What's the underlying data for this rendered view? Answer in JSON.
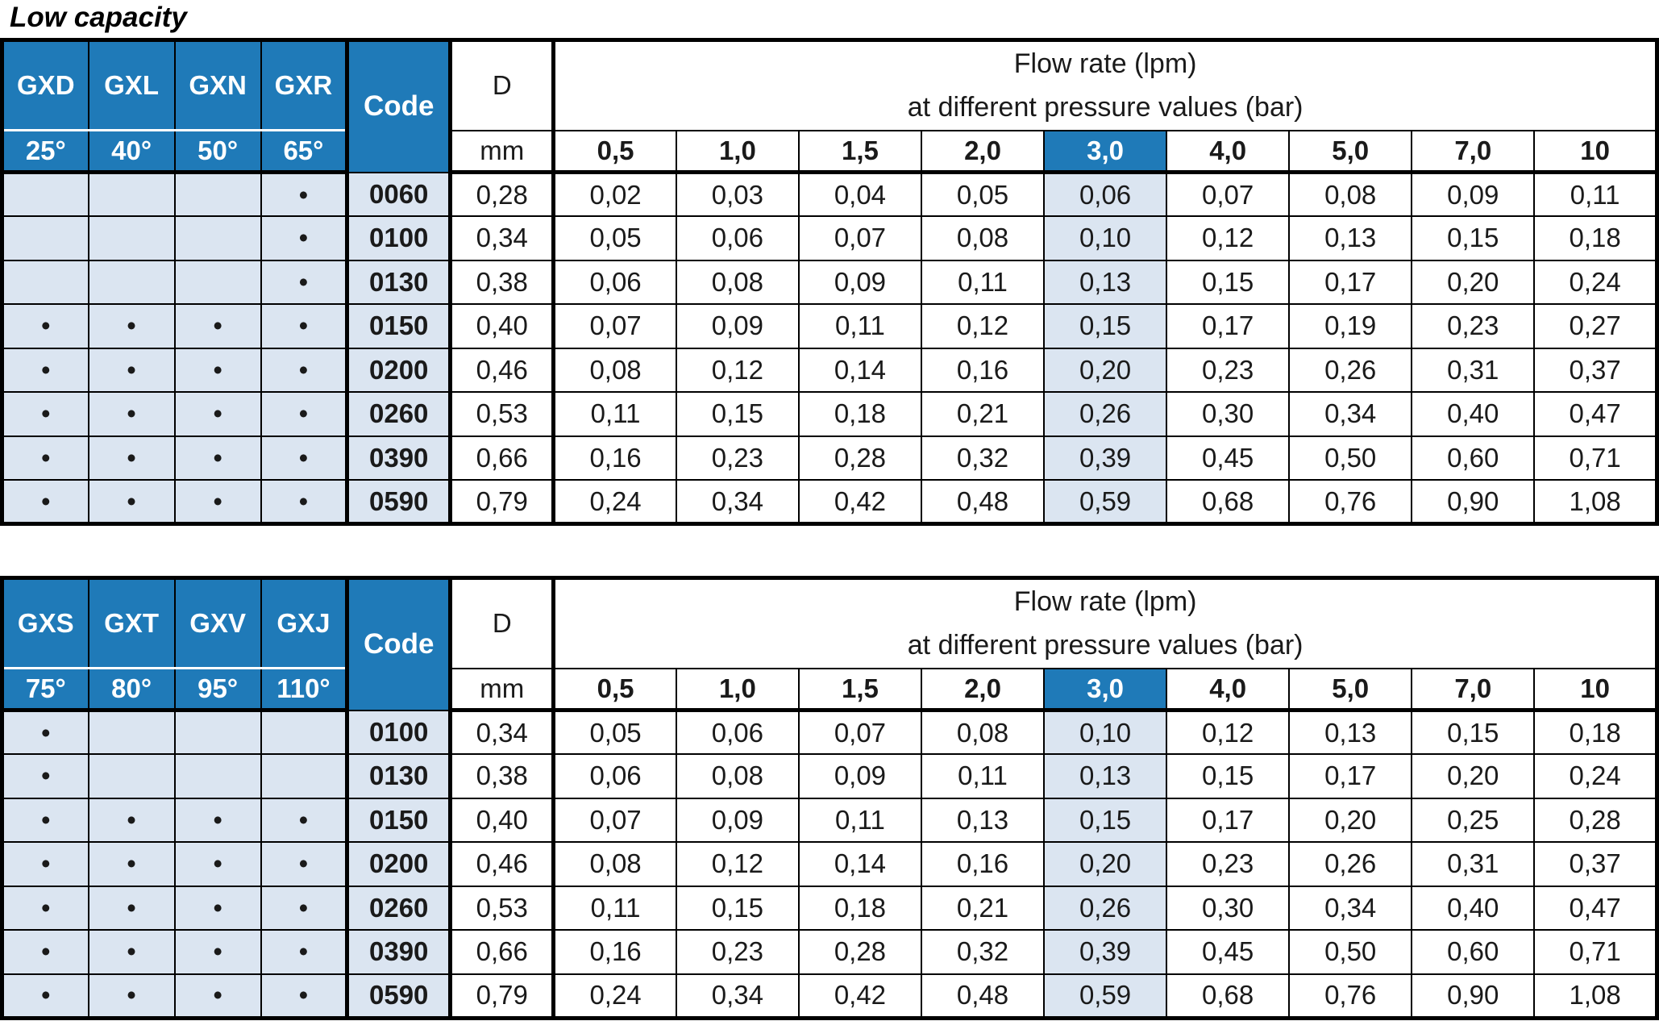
{
  "title": "Low capacity",
  "tables": [
    {
      "series": [
        "GXD",
        "GXL",
        "GXN",
        "GXR"
      ],
      "angles": [
        "25°",
        "40°",
        "50°",
        "65°"
      ],
      "code_label": "Code",
      "d_label": "D",
      "d_unit": "mm",
      "flow_title_1": "Flow rate (lpm)",
      "flow_title_2": "at different pressure values (bar)",
      "pressures": [
        "0,5",
        "1,0",
        "1,5",
        "2,0",
        "3,0",
        "4,0",
        "5,0",
        "7,0",
        "10"
      ],
      "highlight_pressure": "3,0",
      "rows": [
        {
          "marks": [
            "",
            "",
            "",
            "•"
          ],
          "code": "0060",
          "d": "0,28",
          "flows": [
            "0,02",
            "0,03",
            "0,04",
            "0,05",
            "0,06",
            "0,07",
            "0,08",
            "0,09",
            "0,11"
          ]
        },
        {
          "marks": [
            "",
            "",
            "",
            "•"
          ],
          "code": "0100",
          "d": "0,34",
          "flows": [
            "0,05",
            "0,06",
            "0,07",
            "0,08",
            "0,10",
            "0,12",
            "0,13",
            "0,15",
            "0,18"
          ]
        },
        {
          "marks": [
            "",
            "",
            "",
            "•"
          ],
          "code": "0130",
          "d": "0,38",
          "flows": [
            "0,06",
            "0,08",
            "0,09",
            "0,11",
            "0,13",
            "0,15",
            "0,17",
            "0,20",
            "0,24"
          ]
        },
        {
          "marks": [
            "•",
            "•",
            "•",
            "•"
          ],
          "code": "0150",
          "d": "0,40",
          "flows": [
            "0,07",
            "0,09",
            "0,11",
            "0,12",
            "0,15",
            "0,17",
            "0,19",
            "0,23",
            "0,27"
          ]
        },
        {
          "marks": [
            "•",
            "•",
            "•",
            "•"
          ],
          "code": "0200",
          "d": "0,46",
          "flows": [
            "0,08",
            "0,12",
            "0,14",
            "0,16",
            "0,20",
            "0,23",
            "0,26",
            "0,31",
            "0,37"
          ]
        },
        {
          "marks": [
            "•",
            "•",
            "•",
            "•"
          ],
          "code": "0260",
          "d": "0,53",
          "flows": [
            "0,11",
            "0,15",
            "0,18",
            "0,21",
            "0,26",
            "0,30",
            "0,34",
            "0,40",
            "0,47"
          ]
        },
        {
          "marks": [
            "•",
            "•",
            "•",
            "•"
          ],
          "code": "0390",
          "d": "0,66",
          "flows": [
            "0,16",
            "0,23",
            "0,28",
            "0,32",
            "0,39",
            "0,45",
            "0,50",
            "0,60",
            "0,71"
          ]
        },
        {
          "marks": [
            "•",
            "•",
            "•",
            "•"
          ],
          "code": "0590",
          "d": "0,79",
          "flows": [
            "0,24",
            "0,34",
            "0,42",
            "0,48",
            "0,59",
            "0,68",
            "0,76",
            "0,90",
            "1,08"
          ]
        }
      ]
    },
    {
      "series": [
        "GXS",
        "GXT",
        "GXV",
        "GXJ"
      ],
      "angles": [
        "75°",
        "80°",
        "95°",
        "110°"
      ],
      "code_label": "Code",
      "d_label": "D",
      "d_unit": "mm",
      "flow_title_1": "Flow rate (lpm)",
      "flow_title_2": "at different pressure values (bar)",
      "pressures": [
        "0,5",
        "1,0",
        "1,5",
        "2,0",
        "3,0",
        "4,0",
        "5,0",
        "7,0",
        "10"
      ],
      "highlight_pressure": "3,0",
      "rows": [
        {
          "marks": [
            "•",
            "",
            "",
            ""
          ],
          "code": "0100",
          "d": "0,34",
          "flows": [
            "0,05",
            "0,06",
            "0,07",
            "0,08",
            "0,10",
            "0,12",
            "0,13",
            "0,15",
            "0,18"
          ]
        },
        {
          "marks": [
            "•",
            "",
            "",
            ""
          ],
          "code": "0130",
          "d": "0,38",
          "flows": [
            "0,06",
            "0,08",
            "0,09",
            "0,11",
            "0,13",
            "0,15",
            "0,17",
            "0,20",
            "0,24"
          ]
        },
        {
          "marks": [
            "•",
            "•",
            "•",
            "•"
          ],
          "code": "0150",
          "d": "0,40",
          "flows": [
            "0,07",
            "0,09",
            "0,11",
            "0,13",
            "0,15",
            "0,17",
            "0,20",
            "0,25",
            "0,28"
          ]
        },
        {
          "marks": [
            "•",
            "•",
            "•",
            "•"
          ],
          "code": "0200",
          "d": "0,46",
          "flows": [
            "0,08",
            "0,12",
            "0,14",
            "0,16",
            "0,20",
            "0,23",
            "0,26",
            "0,31",
            "0,37"
          ]
        },
        {
          "marks": [
            "•",
            "•",
            "•",
            "•"
          ],
          "code": "0260",
          "d": "0,53",
          "flows": [
            "0,11",
            "0,15",
            "0,18",
            "0,21",
            "0,26",
            "0,30",
            "0,34",
            "0,40",
            "0,47"
          ]
        },
        {
          "marks": [
            "•",
            "•",
            "•",
            "•"
          ],
          "code": "0390",
          "d": "0,66",
          "flows": [
            "0,16",
            "0,23",
            "0,28",
            "0,32",
            "0,39",
            "0,45",
            "0,50",
            "0,60",
            "0,71"
          ]
        },
        {
          "marks": [
            "•",
            "•",
            "•",
            "•"
          ],
          "code": "0590",
          "d": "0,79",
          "flows": [
            "0,24",
            "0,34",
            "0,42",
            "0,48",
            "0,59",
            "0,68",
            "0,76",
            "0,90",
            "1,08"
          ]
        }
      ]
    }
  ],
  "colors": {
    "header_blue": "#1f7ab8",
    "light_blue": "#dbe5f1",
    "border": "#000000"
  }
}
